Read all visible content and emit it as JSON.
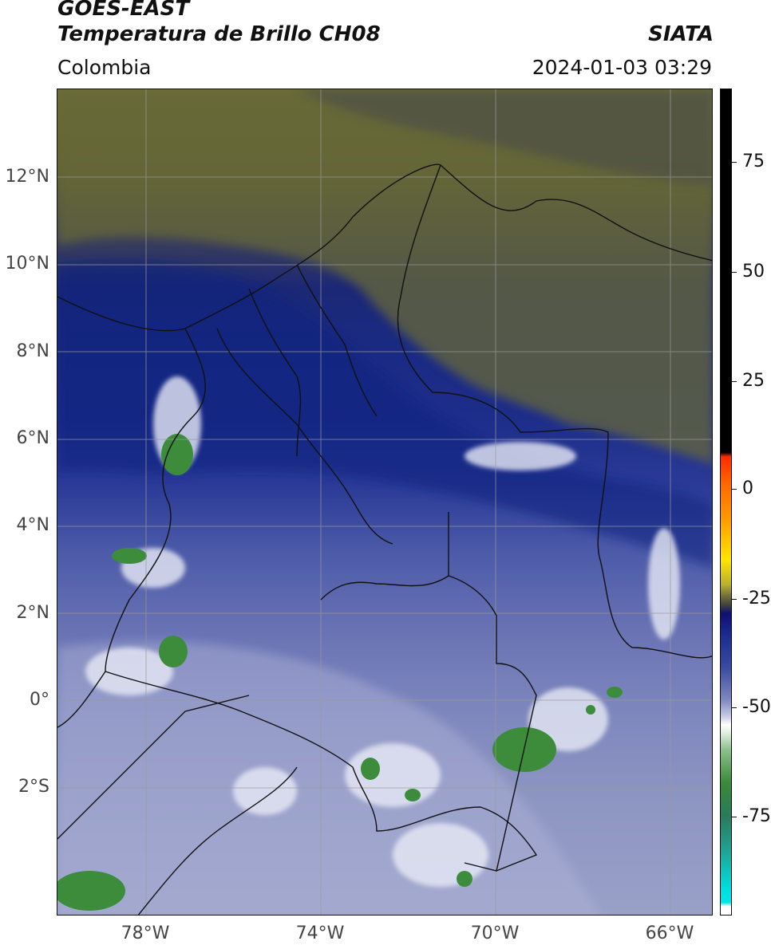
{
  "header": {
    "title_line1": "GOES-EAST",
    "title_line2": "Temperatura de Brillo CH08",
    "brand": "SIATA",
    "region": "Colombia",
    "timestamp": "2024-01-03 03:29"
  },
  "map": {
    "lat_ticks": [
      "12°N",
      "10°N",
      "8°N",
      "6°N",
      "4°N",
      "2°N",
      "0°",
      "2°S"
    ],
    "lon_ticks": [
      "78°W",
      "74°W",
      "70°W",
      "66°W"
    ]
  },
  "colorbar": {
    "ticks": [
      "75",
      "50",
      "25",
      "0",
      "-25",
      "-50",
      "-75"
    ],
    "colors": {
      "black": "#000000",
      "red": "#ff2a00",
      "orange": "#ff8c00",
      "yellow": "#ffe600",
      "olive": "#8a8a30",
      "gray": "#505050",
      "navy": "#0d1f8c",
      "lavender": "#b4b8dc",
      "white": "#ffffff",
      "green": "#2e8b2e",
      "teal": "#1fb08a",
      "cyan": "#00e5e5"
    }
  }
}
